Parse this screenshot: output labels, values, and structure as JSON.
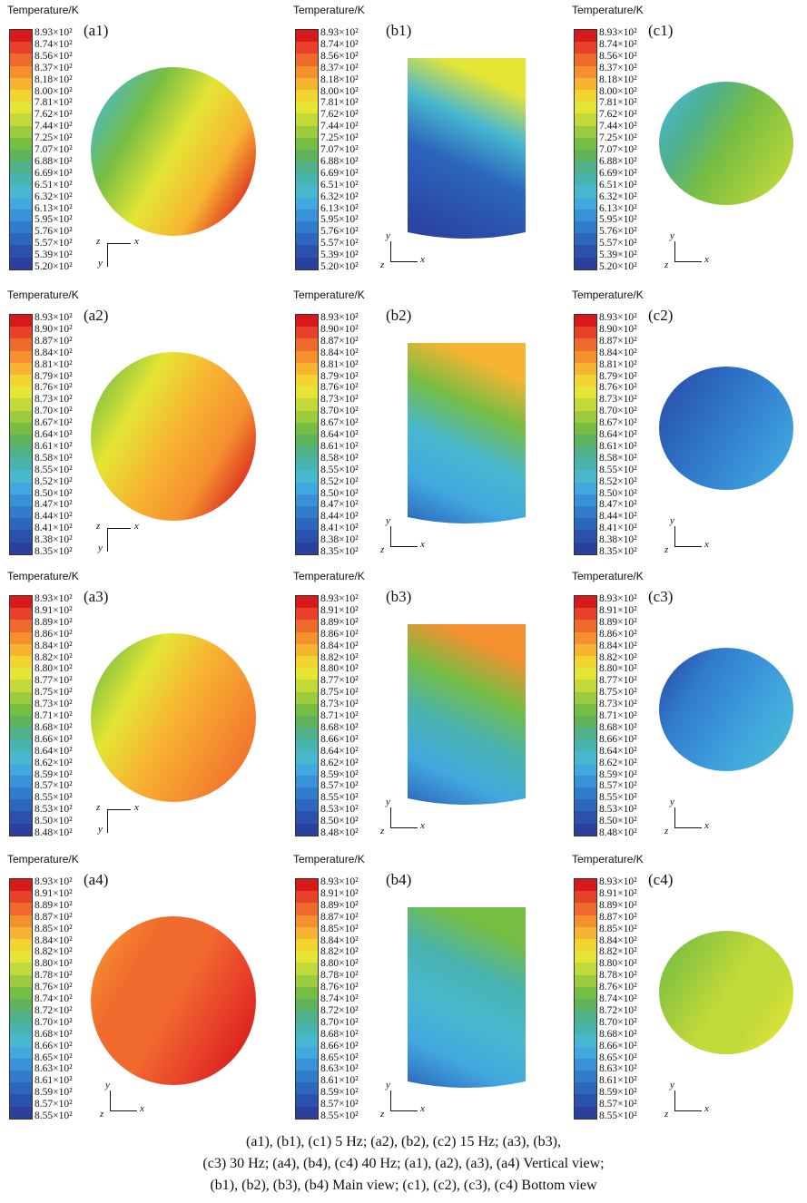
{
  "colorbar_title": "Temperature/K",
  "colorbar_colors": [
    "#d7191c",
    "#e8412a",
    "#f06a2e",
    "#f5902f",
    "#f7b432",
    "#f2d531",
    "#e4e534",
    "#c2d93a",
    "#9ccb3d",
    "#76bd44",
    "#5fb35c",
    "#4fb08a",
    "#49b3b0",
    "#48b8cf",
    "#42a8df",
    "#3992d7",
    "#317ccb",
    "#2c66bd",
    "#2a51ad",
    "#2b3f9d"
  ],
  "ticks": {
    "set1": [
      "8.93×10²",
      "8.74×10²",
      "8.56×10²",
      "8.37×10²",
      "8.18×10²",
      "8.00×10²",
      "7.81×10²",
      "7.62×10²",
      "7.44×10²",
      "7.25×10²",
      "7.07×10²",
      "6.88×10²",
      "6.69×10²",
      "6.51×10²",
      "6.32×10²",
      "6.13×10²",
      "5.95×10²",
      "5.76×10²",
      "5.57×10²",
      "5.39×10²",
      "5.20×10²"
    ],
    "set2": [
      "8.93×10²",
      "8.90×10²",
      "8.87×10²",
      "8.84×10²",
      "8.81×10²",
      "8.79×10²",
      "8.76×10²",
      "8.73×10²",
      "8.70×10²",
      "8.67×10²",
      "8.64×10²",
      "8.61×10²",
      "8.58×10²",
      "8.55×10²",
      "8.52×10²",
      "8.50×10²",
      "8.47×10²",
      "8.44×10²",
      "8.41×10²",
      "8.38×10²",
      "8.35×10²"
    ],
    "set3": [
      "8.93×10²",
      "8.91×10²",
      "8.89×10²",
      "8.86×10²",
      "8.84×10²",
      "8.82×10²",
      "8.80×10²",
      "8.77×10²",
      "8.75×10²",
      "8.73×10²",
      "8.71×10²",
      "8.68×10²",
      "8.66×10²",
      "8.64×10²",
      "8.62×10²",
      "8.59×10²",
      "8.57×10²",
      "8.55×10²",
      "8.53×10²",
      "8.50×10²",
      "8.48×10²"
    ],
    "set4": [
      "8.93×10²",
      "8.91×10²",
      "8.89×10²",
      "8.87×10²",
      "8.85×10²",
      "8.84×10²",
      "8.82×10²",
      "8.80×10²",
      "8.78×10²",
      "8.76×10²",
      "8.74×10²",
      "8.72×10²",
      "8.70×10²",
      "8.68×10²",
      "8.66×10²",
      "8.65×10²",
      "8.63×10²",
      "8.61×10²",
      "8.59×10²",
      "8.57×10²",
      "8.55×10²"
    ]
  },
  "panels": [
    {
      "label": "(a1)",
      "view": "vertical",
      "ticks": "set1",
      "axes": "zyx-top",
      "fill": [
        "#48b8cf",
        "#76bd44",
        "#e4e534",
        "#f7b432",
        "#d7191c"
      ]
    },
    {
      "label": "(b1)",
      "view": "main",
      "ticks": "set1",
      "axes": "yzx",
      "fill": [
        "#2b3f9d",
        "#2a51ad",
        "#2c66bd",
        "#48b8cf",
        "#e4e534"
      ]
    },
    {
      "label": "(c1)",
      "view": "bottom",
      "ticks": "set1",
      "axes": "yzx",
      "fill": [
        "#48b8cf",
        "#4fb08a",
        "#76bd44",
        "#9ccb3d",
        "#c2d93a"
      ]
    },
    {
      "label": "(a2)",
      "view": "vertical",
      "ticks": "set2",
      "axes": "zyx-top",
      "fill": [
        "#76bd44",
        "#e4e534",
        "#f7b432",
        "#f5902f",
        "#d7191c"
      ]
    },
    {
      "label": "(b2)",
      "view": "main",
      "ticks": "set2",
      "axes": "yzx",
      "fill": [
        "#2c66bd",
        "#42a8df",
        "#48b8cf",
        "#76bd44",
        "#f7b432"
      ]
    },
    {
      "label": "(c2)",
      "view": "bottom",
      "ticks": "set2",
      "axes": "yzx",
      "fill": [
        "#2a51ad",
        "#2c66bd",
        "#317ccb",
        "#3992d7",
        "#42a8df"
      ]
    },
    {
      "label": "(a3)",
      "view": "vertical",
      "ticks": "set3",
      "axes": "zyx-top",
      "fill": [
        "#76bd44",
        "#e4e534",
        "#f7b432",
        "#f5902f",
        "#f06a2e"
      ]
    },
    {
      "label": "(b3)",
      "view": "main",
      "ticks": "set3",
      "axes": "yzx",
      "fill": [
        "#2c66bd",
        "#42a8df",
        "#49b3b0",
        "#76bd44",
        "#f5902f"
      ]
    },
    {
      "label": "(c3)",
      "view": "bottom",
      "ticks": "set3",
      "axes": "yzx",
      "fill": [
        "#2a51ad",
        "#317ccb",
        "#3992d7",
        "#42a8df",
        "#48b8cf"
      ]
    },
    {
      "label": "(a4)",
      "view": "vertical",
      "ticks": "set4",
      "axes": "yzx",
      "fill": [
        "#f5902f",
        "#f06a2e",
        "#f06a2e",
        "#e8412a",
        "#d7191c"
      ]
    },
    {
      "label": "(b4)",
      "view": "main",
      "ticks": "set4",
      "axes": "yzx",
      "fill": [
        "#2c66bd",
        "#42a8df",
        "#48b8cf",
        "#49b3b0",
        "#76bd44"
      ]
    },
    {
      "label": "(c4)",
      "view": "bottom",
      "ticks": "set4",
      "axes": "yzx",
      "fill": [
        "#76bd44",
        "#9ccb3d",
        "#c2d93a",
        "#c2d93a",
        "#e4e534"
      ]
    }
  ],
  "axis_letters": {
    "x": "x",
    "y": "y",
    "z": "z"
  },
  "caption": [
    "(a1), (b1), (c1) 5 Hz; (a2), (b2), (c2) 15 Hz; (a3), (b3),",
    "(c3) 30 Hz; (a4), (b4), (c4) 40 Hz; (a1), (a2), (a3), (a4) Vertical view;",
    "(b1), (b2), (b3), (b4) Main view; (c1), (c2), (c3), (c4) Bottom  view"
  ]
}
